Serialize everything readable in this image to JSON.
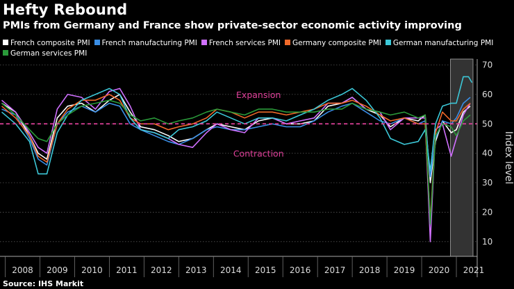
{
  "chart_data": {
    "type": "line",
    "title": "Hefty Rebound",
    "subtitle": "PMIs from Germany and France show private-sector economic activity improving",
    "ylabel": "Index level",
    "ylim": [
      5,
      72
    ],
    "yticks": [
      10,
      20,
      30,
      40,
      50,
      60,
      70
    ],
    "xlim": [
      2007.85,
      2021.6
    ],
    "xticks": [
      "2008",
      "2009",
      "2010",
      "2011",
      "2012",
      "2013",
      "2014",
      "2015",
      "2016",
      "2017",
      "2018",
      "2019",
      "2020",
      "2021"
    ],
    "reference_line": 50,
    "shaded_region": [
      2020.83,
      2021.48
    ],
    "annotations": [
      {
        "text": "Expansion",
        "x": 2015.3,
        "y": 60
      },
      {
        "text": "Contraction",
        "x": 2015.3,
        "y": 40
      }
    ],
    "source": "Source: IHS Markit",
    "series": [
      {
        "name": "French composite PMI",
        "color": "#ffffff",
        "x": [
          2007.9,
          2008.3,
          2008.7,
          2008.95,
          2009.2,
          2009.5,
          2009.8,
          2010.2,
          2010.6,
          2011.0,
          2011.3,
          2011.6,
          2011.9,
          2012.3,
          2012.7,
          2013.0,
          2013.4,
          2013.8,
          2014.1,
          2014.5,
          2014.9,
          2015.3,
          2015.7,
          2016.1,
          2016.5,
          2016.9,
          2017.3,
          2017.7,
          2018.0,
          2018.4,
          2018.8,
          2019.1,
          2019.5,
          2019.9,
          2020.1,
          2020.25,
          2020.4,
          2020.6,
          2020.85,
          2021.0,
          2021.2,
          2021.4
        ],
        "y": [
          57,
          54,
          46,
          40,
          38,
          52,
          56,
          57,
          54,
          58,
          60,
          54,
          49,
          48,
          46,
          44,
          45,
          48,
          50,
          49,
          48,
          51,
          52,
          50,
          50,
          51,
          56,
          57,
          59,
          55,
          53,
          49,
          52,
          51,
          53,
          30,
          44,
          51,
          47,
          48,
          54,
          56
        ]
      },
      {
        "name": "French manufacturing PMI",
        "color": "#3a8ee6",
        "x": [
          2007.9,
          2008.3,
          2008.7,
          2008.95,
          2009.2,
          2009.5,
          2009.8,
          2010.2,
          2010.6,
          2011.0,
          2011.3,
          2011.6,
          2011.9,
          2012.3,
          2012.7,
          2013.0,
          2013.4,
          2013.8,
          2014.1,
          2014.5,
          2014.9,
          2015.3,
          2015.7,
          2016.1,
          2016.5,
          2016.9,
          2017.3,
          2017.7,
          2018.0,
          2018.4,
          2018.8,
          2019.1,
          2019.5,
          2019.9,
          2020.1,
          2020.25,
          2020.4,
          2020.6,
          2020.85,
          2021.0,
          2021.2,
          2021.4
        ],
        "y": [
          55,
          53,
          45,
          38,
          36,
          50,
          54,
          56,
          54,
          57,
          56,
          50,
          48,
          46,
          44,
          43,
          45,
          48,
          49,
          48,
          48,
          49,
          50,
          49,
          49,
          51,
          54,
          56,
          57,
          54,
          51,
          50,
          52,
          50,
          51,
          32,
          45,
          51,
          50,
          52,
          57,
          59
        ]
      },
      {
        "name": "French services PMI",
        "color": "#d070ff",
        "x": [
          2007.9,
          2008.3,
          2008.7,
          2008.95,
          2009.2,
          2009.5,
          2009.8,
          2010.2,
          2010.6,
          2011.0,
          2011.3,
          2011.6,
          2011.9,
          2012.3,
          2012.7,
          2013.0,
          2013.4,
          2013.8,
          2014.1,
          2014.5,
          2014.9,
          2015.3,
          2015.7,
          2016.1,
          2016.5,
          2016.9,
          2017.3,
          2017.7,
          2018.0,
          2018.4,
          2018.8,
          2019.1,
          2019.5,
          2019.9,
          2020.1,
          2020.25,
          2020.4,
          2020.6,
          2020.85,
          2021.0,
          2021.2,
          2021.4
        ],
        "y": [
          58,
          54,
          47,
          42,
          40,
          55,
          60,
          59,
          55,
          61,
          62,
          56,
          48,
          47,
          45,
          43,
          42,
          47,
          50,
          48,
          47,
          52,
          52,
          50,
          51,
          52,
          57,
          57,
          59,
          55,
          54,
          48,
          52,
          52,
          52,
          10,
          48,
          50,
          39,
          45,
          53,
          57
        ]
      },
      {
        "name": "Germany composite PMI",
        "color": "#f06a2a",
        "x": [
          2007.9,
          2008.3,
          2008.7,
          2008.95,
          2009.2,
          2009.5,
          2009.8,
          2010.2,
          2010.6,
          2011.0,
          2011.3,
          2011.6,
          2011.9,
          2012.3,
          2012.7,
          2013.0,
          2013.4,
          2013.8,
          2014.1,
          2014.5,
          2014.9,
          2015.3,
          2015.7,
          2016.1,
          2016.5,
          2016.9,
          2017.3,
          2017.7,
          2018.0,
          2018.4,
          2018.8,
          2019.1,
          2019.5,
          2019.9,
          2020.1,
          2020.25,
          2020.4,
          2020.6,
          2020.85,
          2021.0,
          2021.2,
          2021.4
        ],
        "y": [
          56,
          52,
          46,
          39,
          37,
          50,
          55,
          58,
          58,
          60,
          58,
          52,
          50,
          50,
          48,
          49,
          50,
          52,
          55,
          54,
          52,
          54,
          54,
          53,
          54,
          55,
          57,
          57,
          58,
          56,
          53,
          51,
          52,
          50,
          50,
          17,
          47,
          54,
          51,
          51,
          55,
          57
        ]
      },
      {
        "name": "German manufacturing PMI",
        "color": "#3cc8d8",
        "x": [
          2007.9,
          2008.3,
          2008.7,
          2008.95,
          2009.2,
          2009.5,
          2009.8,
          2010.2,
          2010.6,
          2011.0,
          2011.3,
          2011.6,
          2011.9,
          2012.3,
          2012.7,
          2013.0,
          2013.4,
          2013.8,
          2014.1,
          2014.5,
          2014.9,
          2015.3,
          2015.7,
          2016.1,
          2016.5,
          2016.9,
          2017.3,
          2017.7,
          2018.0,
          2018.4,
          2018.8,
          2019.1,
          2019.5,
          2019.9,
          2020.1,
          2020.25,
          2020.4,
          2020.6,
          2020.85,
          2021.0,
          2021.2,
          2021.35,
          2021.45
        ],
        "y": [
          54,
          50,
          44,
          33,
          33,
          47,
          53,
          58,
          60,
          62,
          60,
          52,
          48,
          47,
          45,
          48,
          49,
          51,
          54,
          52,
          50,
          52,
          52,
          51,
          53,
          55,
          58,
          60,
          62,
          58,
          52,
          45,
          43,
          44,
          48,
          34,
          50,
          56,
          57,
          57,
          66,
          66,
          64
        ]
      },
      {
        "name": "German services PMI",
        "color": "#2a9a3a",
        "x": [
          2007.9,
          2008.3,
          2008.7,
          2008.95,
          2009.2,
          2009.5,
          2009.8,
          2010.2,
          2010.6,
          2011.0,
          2011.3,
          2011.6,
          2011.9,
          2012.3,
          2012.7,
          2013.0,
          2013.4,
          2013.8,
          2014.1,
          2014.5,
          2014.9,
          2015.3,
          2015.7,
          2016.1,
          2016.5,
          2016.9,
          2017.3,
          2017.7,
          2018.0,
          2018.4,
          2018.8,
          2019.1,
          2019.5,
          2019.9,
          2020.1,
          2020.25,
          2020.4,
          2020.6,
          2020.85,
          2021.0,
          2021.2,
          2021.4
        ],
        "y": [
          57,
          53,
          48,
          45,
          44,
          50,
          53,
          56,
          57,
          58,
          57,
          53,
          51,
          52,
          50,
          51,
          52,
          54,
          55,
          54,
          53,
          55,
          55,
          54,
          54,
          54,
          55,
          55,
          57,
          55,
          54,
          53,
          54,
          52,
          53,
          16,
          46,
          50,
          49,
          46,
          51,
          53
        ]
      }
    ]
  }
}
